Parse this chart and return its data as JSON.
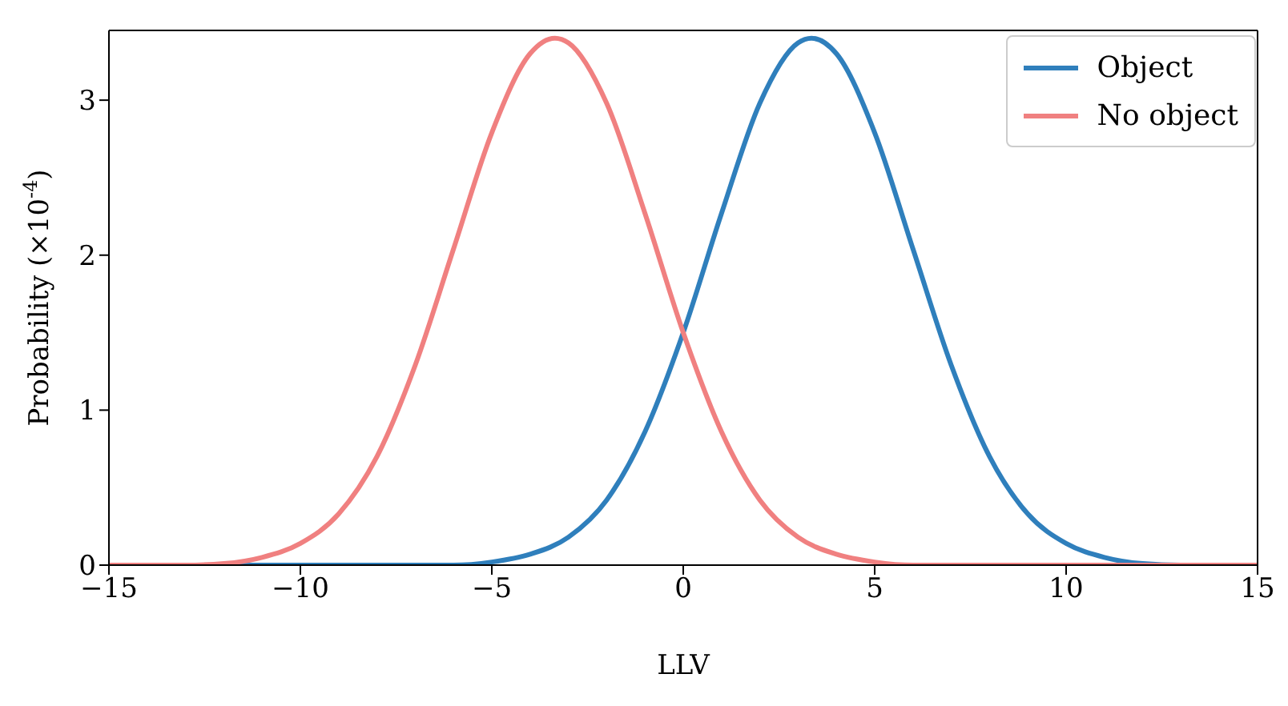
{
  "chart_data": {
    "type": "line",
    "xlabel": "LLV",
    "ylabel": "Probability (×10$^{-4}$)",
    "xlim": [
      -15,
      15
    ],
    "ylim": [
      0,
      3.45
    ],
    "xticks": [
      {
        "value": -15,
        "label": "−15"
      },
      {
        "value": -10,
        "label": "−10"
      },
      {
        "value": -5,
        "label": "−5"
      },
      0,
      5,
      10,
      15
    ],
    "yticks": [
      0,
      1,
      2,
      3
    ],
    "series": [
      {
        "name": "Object",
        "color": "#2f7fbc",
        "x": [
          -15,
          -6,
          -5,
          -4,
          -3,
          -2,
          -1,
          0,
          1,
          2,
          3,
          3.35,
          4,
          5,
          6,
          7,
          8,
          9,
          10,
          11,
          12,
          13,
          15
        ],
        "values": [
          0,
          0,
          0.02,
          0.07,
          0.18,
          0.42,
          0.86,
          1.5,
          2.27,
          2.98,
          3.37,
          3.4,
          3.3,
          2.79,
          2.04,
          1.29,
          0.7,
          0.33,
          0.14,
          0.05,
          0.01,
          0,
          0
        ]
      },
      {
        "name": "No object",
        "color": "#f08080",
        "x": [
          -15,
          -13,
          -12,
          -11,
          -10,
          -9,
          -8,
          -7,
          -6,
          -5,
          -4,
          -3.35,
          -3,
          -2,
          -1,
          0,
          1,
          2,
          3,
          4,
          5,
          6,
          15
        ],
        "values": [
          0,
          0,
          0.01,
          0.05,
          0.14,
          0.33,
          0.7,
          1.29,
          2.04,
          2.79,
          3.3,
          3.4,
          3.37,
          2.98,
          2.27,
          1.5,
          0.86,
          0.42,
          0.18,
          0.07,
          0.02,
          0,
          0
        ]
      }
    ],
    "legend": "top right",
    "marker": "none",
    "line_style": "solid"
  }
}
